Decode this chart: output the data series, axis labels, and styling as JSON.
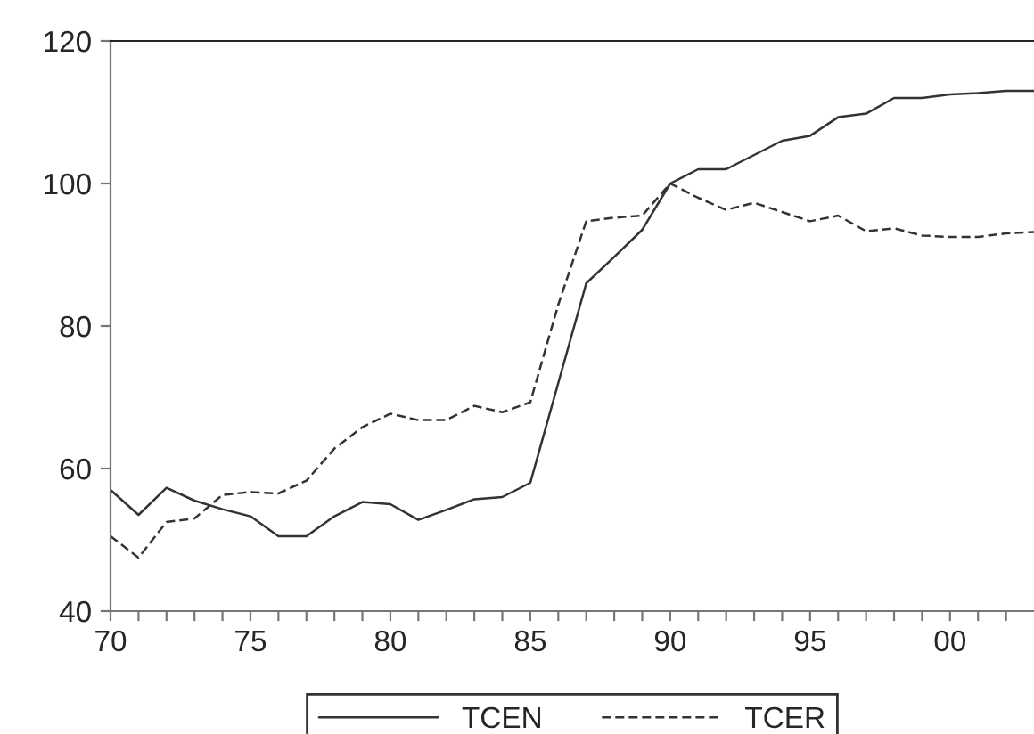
{
  "chart_data": {
    "type": "line",
    "x": [
      1970,
      1971,
      1972,
      1973,
      1974,
      1975,
      1976,
      1977,
      1978,
      1979,
      1980,
      1981,
      1982,
      1983,
      1984,
      1985,
      1986,
      1987,
      1988,
      1989,
      1990,
      1991,
      1992,
      1993,
      1994,
      1995,
      1996,
      1997,
      1998,
      1999,
      2000,
      2001,
      2002,
      2003
    ],
    "series": [
      {
        "name": "TCEN",
        "color": "#333333",
        "line_style": "solid",
        "values": [
          57,
          53.5,
          57.3,
          55.5,
          54.3,
          53.3,
          50.5,
          50.5,
          53.3,
          55.3,
          55,
          52.8,
          54.2,
          55.7,
          56,
          58,
          72,
          86,
          89.7,
          93.5,
          100,
          102,
          102,
          104,
          106,
          106.7,
          109.3,
          109.8,
          112,
          112,
          112.5,
          112.7,
          113,
          113
        ]
      },
      {
        "name": "TCER",
        "color": "#333333",
        "line_style": "dashed",
        "values": [
          50.5,
          47.5,
          52.5,
          53,
          56.3,
          56.7,
          56.5,
          58.3,
          62.8,
          65.8,
          67.7,
          66.8,
          66.8,
          68.8,
          67.9,
          69.3,
          83,
          94.7,
          95.2,
          95.5,
          100,
          98,
          96.3,
          97.3,
          96,
          94.7,
          95.5,
          93.3,
          93.7,
          92.7,
          92.5,
          92.5,
          93,
          93.2
        ]
      }
    ],
    "xlim": [
      1970,
      2003
    ],
    "xticks": [
      {
        "value": 1970,
        "label": "70"
      },
      {
        "value": 1971,
        "label": null
      },
      {
        "value": 1972,
        "label": null
      },
      {
        "value": 1973,
        "label": null
      },
      {
        "value": 1974,
        "label": null
      },
      {
        "value": 1975,
        "label": "75"
      },
      {
        "value": 1976,
        "label": null
      },
      {
        "value": 1977,
        "label": null
      },
      {
        "value": 1978,
        "label": null
      },
      {
        "value": 1979,
        "label": null
      },
      {
        "value": 1980,
        "label": "80"
      },
      {
        "value": 1981,
        "label": null
      },
      {
        "value": 1982,
        "label": null
      },
      {
        "value": 1983,
        "label": null
      },
      {
        "value": 1984,
        "label": null
      },
      {
        "value": 1985,
        "label": "85"
      },
      {
        "value": 1986,
        "label": null
      },
      {
        "value": 1987,
        "label": null
      },
      {
        "value": 1988,
        "label": null
      },
      {
        "value": 1989,
        "label": null
      },
      {
        "value": 1990,
        "label": "90"
      },
      {
        "value": 1991,
        "label": null
      },
      {
        "value": 1992,
        "label": null
      },
      {
        "value": 1993,
        "label": null
      },
      {
        "value": 1994,
        "label": null
      },
      {
        "value": 1995,
        "label": "95"
      },
      {
        "value": 1996,
        "label": null
      },
      {
        "value": 1997,
        "label": null
      },
      {
        "value": 1998,
        "label": null
      },
      {
        "value": 1999,
        "label": null
      },
      {
        "value": 2000,
        "label": "00"
      },
      {
        "value": 2001,
        "label": null
      },
      {
        "value": 2002,
        "label": null
      }
    ],
    "ylim": [
      40,
      120
    ],
    "yticks": [
      40,
      60,
      80,
      100,
      120
    ],
    "grid": false,
    "legend": "bottom",
    "marker": "none"
  }
}
